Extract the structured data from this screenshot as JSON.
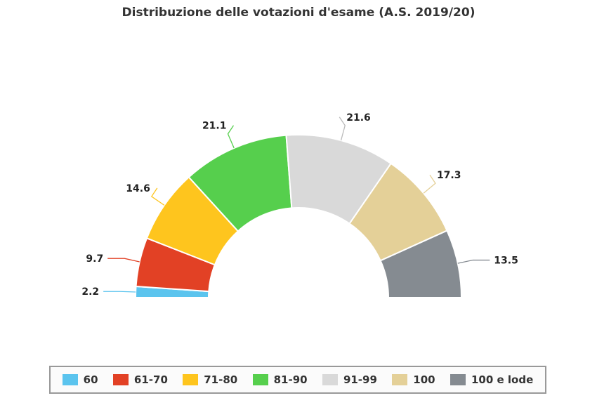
{
  "chart_data": {
    "type": "pie",
    "subtype": "semicircle-donut",
    "title": "Distribuzione delle votazioni d'esame (A.S. 2019/20)",
    "categories": [
      "60",
      "61-70",
      "71-80",
      "81-90",
      "91-99",
      "100",
      "100 e lode"
    ],
    "values": [
      2.2,
      9.7,
      14.6,
      21.1,
      21.6,
      17.3,
      13.5
    ],
    "labels": [
      "2.2",
      "9.7",
      "14.6",
      "21.1",
      "21.6",
      "17.3",
      "13.5"
    ],
    "colors": [
      "#5bc4ee",
      "#e24125",
      "#fec51e",
      "#56cf4d",
      "#d9d9d9",
      "#e4d098",
      "#858b91"
    ],
    "legend_position": "bottom"
  }
}
